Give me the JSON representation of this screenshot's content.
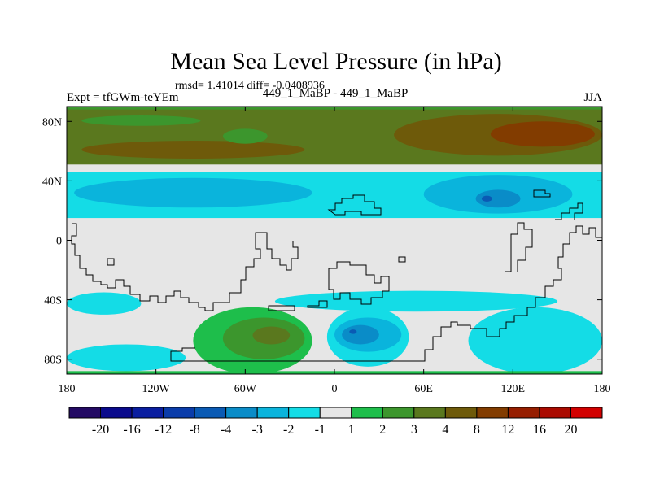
{
  "chart_data": {
    "type": "heatmap",
    "title": "Mean Sea Level Pressure (in hPa)",
    "stats": "rmsd= 1.41014 diff= -0.0408936",
    "left_label": "Expt = tfGWm-teYEm",
    "center_label": "449_1_MaBP - 449_1_MaBP",
    "right_label": "JJA",
    "x_ticks": [
      "180",
      "120W",
      "60W",
      "0",
      "60E",
      "120E",
      "180"
    ],
    "x_tick_values": [
      -180,
      -120,
      -60,
      0,
      60,
      120,
      180
    ],
    "y_ticks": [
      "80N",
      "40N",
      "0",
      "40S",
      "80S"
    ],
    "y_tick_values": [
      80,
      40,
      0,
      -40,
      -80
    ],
    "xlim": [
      -180,
      180
    ],
    "ylim": [
      -90,
      90
    ],
    "colorbar": {
      "labels": [
        "-20",
        "-16",
        "-12",
        "-8",
        "-4",
        "-3",
        "-2",
        "-1",
        "1",
        "2",
        "3",
        "4",
        "8",
        "12",
        "16",
        "20"
      ],
      "colors": [
        "#240A64",
        "#0A0A8C",
        "#0A1EA0",
        "#0A3CAA",
        "#0A5AB4",
        "#0A8CC8",
        "#0AB4DC",
        "#14DCE6",
        "#E6E6E6",
        "#1EBE4B",
        "#3C962D",
        "#5A781E",
        "#6E5A0A",
        "#823C00",
        "#961E00",
        "#AA0A00",
        "#D20000"
      ]
    },
    "color_keys": {
      "bg": "#E6E6E6",
      "p1_2": "#1EBE4B",
      "p2_3": "#3C962D",
      "p3_4": "#5A781E",
      "p4_8": "#6E5A0A",
      "p8_12": "#823C00",
      "n1_2": "#14DCE6",
      "n2_3": "#0AB4DC",
      "n3_4": "#0A8CC8",
      "n4_8": "#0A5AB4"
    },
    "regions": [
      {
        "level": "p3_4",
        "lon": [
          -180,
          180
        ],
        "lat": [
          51,
          90
        ]
      },
      {
        "level": "p4_8",
        "lon": [
          -170,
          -20
        ],
        "lat": [
          55,
          67
        ]
      },
      {
        "level": "p4_8",
        "lon": [
          40,
          180
        ],
        "lat": [
          57,
          85
        ]
      },
      {
        "level": "p8_12",
        "lon": [
          105,
          175
        ],
        "lat": [
          63,
          80
        ]
      },
      {
        "level": "p2_3",
        "lon": [
          -170,
          -90
        ],
        "lat": [
          77,
          84
        ]
      },
      {
        "level": "p2_3",
        "lon": [
          -75,
          -45
        ],
        "lat": [
          65,
          75
        ]
      },
      {
        "level": "p2_3",
        "lon": [
          -180,
          180
        ],
        "lat": [
          88,
          90
        ]
      },
      {
        "level": "n1_2",
        "lon": [
          -180,
          180
        ],
        "lat": [
          15,
          46
        ]
      },
      {
        "level": "n2_3",
        "lon": [
          -175,
          -15
        ],
        "lat": [
          22,
          42
        ]
      },
      {
        "level": "n2_3",
        "lon": [
          60,
          160
        ],
        "lat": [
          18,
          44
        ]
      },
      {
        "level": "n3_4",
        "lon": [
          95,
          125
        ],
        "lat": [
          22,
          34
        ]
      },
      {
        "level": "n4_8",
        "lon": [
          99,
          106
        ],
        "lat": [
          26,
          30
        ]
      },
      {
        "level": "n1_2",
        "lon": [
          -180,
          -130
        ],
        "lat": [
          -50,
          -35
        ]
      },
      {
        "level": "n1_2",
        "lon": [
          -180,
          -100
        ],
        "lat": [
          -88,
          -70
        ]
      },
      {
        "level": "n1_2",
        "lon": [
          -40,
          150
        ],
        "lat": [
          -48,
          -34
        ]
      },
      {
        "level": "n1_2",
        "lon": [
          90,
          180
        ],
        "lat": [
          -90,
          -45
        ]
      },
      {
        "level": "n1_2",
        "lon": [
          -5,
          50
        ],
        "lat": [
          -85,
          -45
        ]
      },
      {
        "level": "n2_3",
        "lon": [
          0,
          45
        ],
        "lat": [
          -75,
          -52
        ]
      },
      {
        "level": "n3_4",
        "lon": [
          5,
          30
        ],
        "lat": [
          -70,
          -57
        ]
      },
      {
        "level": "n4_8",
        "lon": [
          10,
          15
        ],
        "lat": [
          -63,
          -60
        ]
      },
      {
        "level": "p1_2",
        "lon": [
          -95,
          -15
        ],
        "lat": [
          -90,
          -45
        ]
      },
      {
        "level": "p2_3",
        "lon": [
          -75,
          -20
        ],
        "lat": [
          -80,
          -52
        ]
      },
      {
        "level": "p3_4",
        "lon": [
          -55,
          -30
        ],
        "lat": [
          -70,
          -58
        ]
      },
      {
        "level": "p1_2",
        "lon": [
          -180,
          180
        ],
        "lat": [
          -90,
          -88
        ]
      }
    ]
  }
}
